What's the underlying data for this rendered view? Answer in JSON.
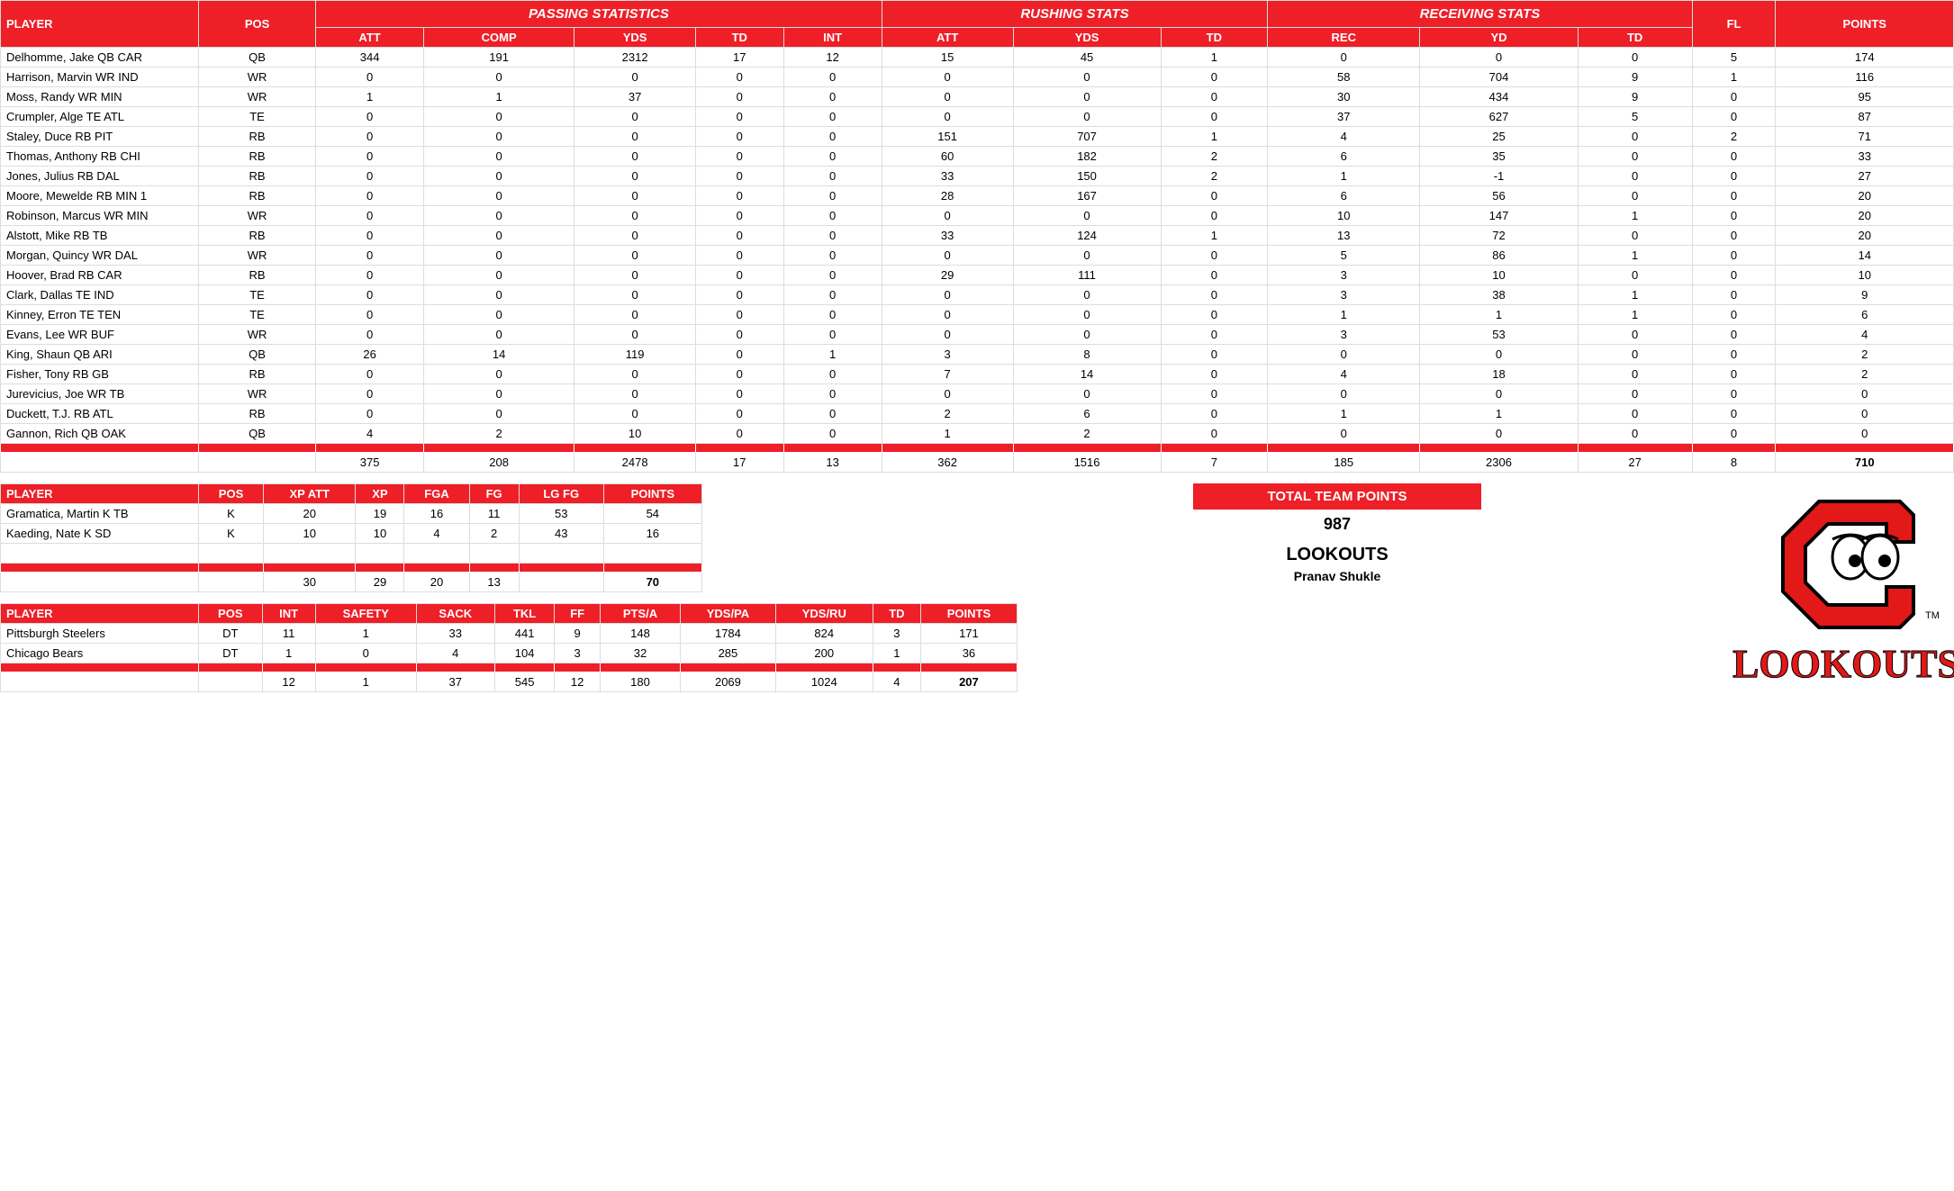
{
  "colors": {
    "red": "#ee1f27",
    "white": "#ffffff",
    "logo_red": "#e31818",
    "logo_outline": "#000000",
    "border": "#dddddd"
  },
  "main": {
    "group_headers": [
      "PASSING STATISTICS",
      "RUSHING STATS",
      "RECEIVING STATS"
    ],
    "columns": [
      "PLAYER",
      "POS",
      "ATT",
      "COMP",
      "YDS",
      "TD",
      "INT",
      "ATT",
      "YDS",
      "TD",
      "REC",
      "YD",
      "TD",
      "FL",
      "POINTS"
    ],
    "rows": [
      [
        "Delhomme, Jake QB CAR",
        "QB",
        344,
        191,
        2312,
        17,
        12,
        15,
        45,
        1,
        0,
        0,
        0,
        5,
        174
      ],
      [
        "Harrison, Marvin WR IND",
        "WR",
        0,
        0,
        0,
        0,
        0,
        0,
        0,
        0,
        58,
        704,
        9,
        1,
        116
      ],
      [
        "Moss, Randy WR MIN",
        "WR",
        1,
        1,
        37,
        0,
        0,
        0,
        0,
        0,
        30,
        434,
        9,
        0,
        95
      ],
      [
        "Crumpler, Alge TE ATL",
        "TE",
        0,
        0,
        0,
        0,
        0,
        0,
        0,
        0,
        37,
        627,
        5,
        0,
        87
      ],
      [
        "Staley, Duce RB PIT",
        "RB",
        0,
        0,
        0,
        0,
        0,
        151,
        707,
        1,
        4,
        25,
        0,
        2,
        71
      ],
      [
        "Thomas, Anthony RB CHI",
        "RB",
        0,
        0,
        0,
        0,
        0,
        60,
        182,
        2,
        6,
        35,
        0,
        0,
        33
      ],
      [
        "Jones, Julius RB DAL",
        "RB",
        0,
        0,
        0,
        0,
        0,
        33,
        150,
        2,
        1,
        -1,
        0,
        0,
        27
      ],
      [
        "Moore, Mewelde RB MIN 1",
        "RB",
        0,
        0,
        0,
        0,
        0,
        28,
        167,
        0,
        6,
        56,
        0,
        0,
        20
      ],
      [
        "Robinson, Marcus WR MIN",
        "WR",
        0,
        0,
        0,
        0,
        0,
        0,
        0,
        0,
        10,
        147,
        1,
        0,
        20
      ],
      [
        "Alstott, Mike RB TB",
        "RB",
        0,
        0,
        0,
        0,
        0,
        33,
        124,
        1,
        13,
        72,
        0,
        0,
        20
      ],
      [
        "Morgan, Quincy WR DAL",
        "WR",
        0,
        0,
        0,
        0,
        0,
        0,
        0,
        0,
        5,
        86,
        1,
        0,
        14
      ],
      [
        "Hoover, Brad RB CAR",
        "RB",
        0,
        0,
        0,
        0,
        0,
        29,
        111,
        0,
        3,
        10,
        0,
        0,
        10
      ],
      [
        "Clark, Dallas TE IND",
        "TE",
        0,
        0,
        0,
        0,
        0,
        0,
        0,
        0,
        3,
        38,
        1,
        0,
        9
      ],
      [
        "Kinney, Erron TE TEN",
        "TE",
        0,
        0,
        0,
        0,
        0,
        0,
        0,
        0,
        1,
        1,
        1,
        0,
        6
      ],
      [
        "Evans, Lee WR BUF",
        "WR",
        0,
        0,
        0,
        0,
        0,
        0,
        0,
        0,
        3,
        53,
        0,
        0,
        4
      ],
      [
        "King, Shaun QB ARI",
        "QB",
        26,
        14,
        119,
        0,
        1,
        3,
        8,
        0,
        0,
        0,
        0,
        0,
        2
      ],
      [
        "Fisher, Tony RB GB",
        "RB",
        0,
        0,
        0,
        0,
        0,
        7,
        14,
        0,
        4,
        18,
        0,
        0,
        2
      ],
      [
        "Jurevicius, Joe WR TB",
        "WR",
        0,
        0,
        0,
        0,
        0,
        0,
        0,
        0,
        0,
        0,
        0,
        0,
        0
      ],
      [
        "Duckett, T.J. RB ATL",
        "RB",
        0,
        0,
        0,
        0,
        0,
        2,
        6,
        0,
        1,
        1,
        0,
        0,
        0
      ],
      [
        "Gannon, Rich QB OAK",
        "QB",
        4,
        2,
        10,
        0,
        0,
        1,
        2,
        0,
        0,
        0,
        0,
        0,
        0
      ]
    ],
    "totals": [
      "",
      "",
      375,
      208,
      2478,
      17,
      13,
      362,
      1516,
      7,
      185,
      2306,
      27,
      8,
      "710"
    ]
  },
  "kicking": {
    "columns": [
      "PLAYER",
      "POS",
      "XP ATT",
      "XP",
      "FGA",
      "FG",
      "LG FG",
      "POINTS"
    ],
    "rows": [
      [
        "Gramatica, Martin K TB",
        "K",
        20,
        19,
        16,
        11,
        53,
        54
      ],
      [
        "Kaeding, Nate K SD",
        "K",
        10,
        10,
        4,
        2,
        43,
        16
      ]
    ],
    "totals": [
      "",
      "",
      30,
      29,
      20,
      13,
      "",
      "70"
    ]
  },
  "defense": {
    "columns": [
      "PLAYER",
      "POS",
      "INT",
      "SAFETY",
      "SACK",
      "TKL",
      "FF",
      "PTS/A",
      "YDS/PA",
      "YDS/RU",
      "TD",
      "POINTS"
    ],
    "rows": [
      [
        "Pittsburgh Steelers",
        "DT",
        11,
        1,
        33,
        441,
        9,
        148,
        1784,
        824,
        3,
        171
      ],
      [
        "Chicago Bears",
        "DT",
        1,
        0,
        4,
        104,
        3,
        32,
        285,
        200,
        1,
        36
      ]
    ],
    "totals": [
      "",
      "",
      12,
      1,
      37,
      545,
      12,
      180,
      2069,
      1024,
      4,
      "207"
    ]
  },
  "team": {
    "ttp_label": "TOTAL TEAM POINTS",
    "ttp_value": "987",
    "name": "LOOKOUTS",
    "owner": "Pranav Shukle",
    "logo_text": "LOOKOUTS",
    "tm": "TM"
  }
}
